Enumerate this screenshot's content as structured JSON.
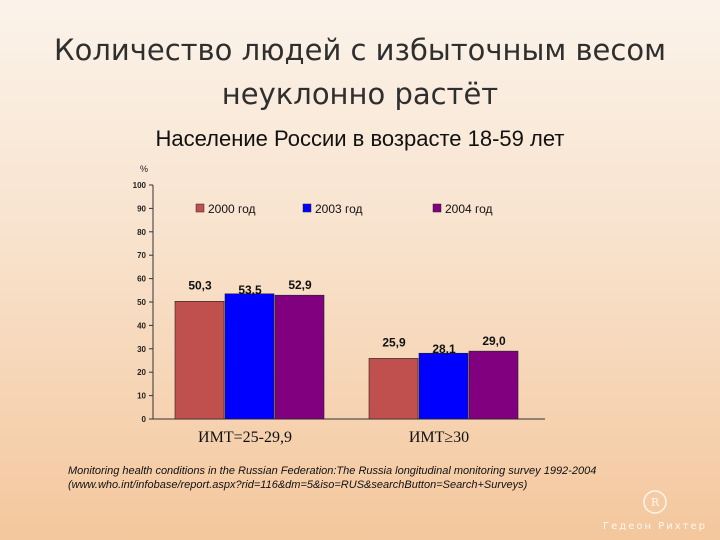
{
  "title_line1": "Количество людей с избыточным весом",
  "title_line2": "неуклонно растёт",
  "subtitle": "Население России в возрасте 18-59 лет",
  "source": "Monitoring health conditions in the Russian Federation:The Russia longitudinal monitoring survey 1992-2004 (www.who.int/infobase/report.aspx?rid=116&dm=5&iso=RUS&searchButton=Search+Surveys)",
  "logo_text": "Гедеон Рихтер",
  "colors": {
    "2000": "#c0504d",
    "2003": "#0000ff",
    "2004": "#800080"
  },
  "chart_data": {
    "type": "bar",
    "ylabel": "%",
    "ylim": [
      0,
      100
    ],
    "yticks": [
      0,
      10,
      20,
      30,
      40,
      50,
      60,
      70,
      80,
      90,
      100
    ],
    "categories": [
      "ИМТ=25-29,9",
      "ИМТ≥30"
    ],
    "series": [
      {
        "name": "2000 год",
        "values": [
          50.3,
          25.9
        ],
        "labels": [
          "50,3",
          "25,9"
        ]
      },
      {
        "name": "2003 год",
        "values": [
          53.5,
          28.1
        ],
        "labels": [
          "53,5",
          "28,1"
        ]
      },
      {
        "name": "2004 год",
        "values": [
          52.9,
          29.0
        ],
        "labels": [
          "52,9",
          "29,0"
        ]
      }
    ],
    "legend_position": "top",
    "grid": false
  }
}
